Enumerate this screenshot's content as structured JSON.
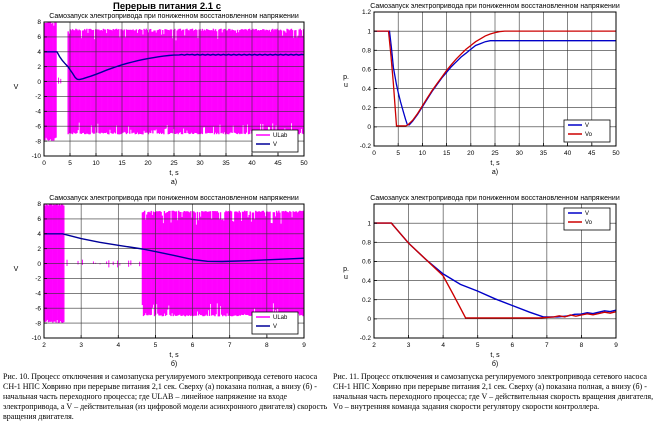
{
  "page": {
    "title": "Перерыв питания 2.1 с",
    "captions": {
      "fig10": "Рис. 10. Процесс отключения и самозапуска регулируемого электропривода сетевого насоса\nСН-1 НПС Ховрино при перерыве питания 2,1 сек. Сверху (а) показана полная, а внизу (б) -\nначальная часть переходного процесса; где ULAB – линейное напряжение на входе\nэлектропривода, а V – действительная (из цифровой модели асинхронного двигателя) скорость\nвращения двигателя.",
      "fig11": "Рис. 11. Процесс отключения и самозапуска регулируемого электропривода сетевого насоса\nСН-1 НПС Ховрино при перерыве питания 2,1 сек. Сверху (а) показана полная, а внизу (б) -\nначальная часть переходного процесса; где V – действительная скорость вращения двигателя,\nVо – внутренняя команда задания скорости регулятору скорости контроллера."
    }
  },
  "colors": {
    "magenta": "#FF00FF",
    "blue_left": "#000099",
    "blue_right": "#0000C8",
    "red": "#CC0000",
    "grid": "#333333",
    "frame": "#000000"
  },
  "chart_data": [
    {
      "id": "fig10a",
      "type": "line",
      "title": "Самозапуск электропривода при пониженном восстановленном напряжении",
      "xlabel": "t, s",
      "ylabel": "V",
      "sublabel": "а)",
      "xlim": [
        0,
        50
      ],
      "ylim": [
        -10,
        8
      ],
      "xticks": [
        0,
        5,
        10,
        15,
        20,
        25,
        30,
        35,
        40,
        45,
        50
      ],
      "yticks": [
        8,
        6,
        4,
        2,
        0,
        -2,
        -4,
        -6,
        -8,
        -10
      ],
      "grid": true,
      "legend": {
        "pos": "br",
        "entries": [
          {
            "label": "ULab",
            "color": "#FF00FF"
          },
          {
            "label": "V",
            "color": "#000099"
          }
        ]
      },
      "bands": [
        {
          "x0": 0.2,
          "x1": 2.5,
          "amp": 8,
          "jitter": 0.5
        },
        {
          "x0": 2.8,
          "x1": 4.4,
          "amp": 0.6,
          "sparse": true
        },
        {
          "x0": 4.65,
          "x1": 50,
          "amp": 7.1,
          "jitter": 1.6
        }
      ],
      "series": [
        {
          "name": "V",
          "color": "#000099",
          "width": 1.4,
          "fuzz": [
            26,
            50,
            0.05,
            0.5
          ],
          "points": [
            [
              0,
              4
            ],
            [
              2.5,
              4
            ],
            [
              3,
              3.35
            ],
            [
              3.5,
              2.85
            ],
            [
              4,
              2.45
            ],
            [
              4.65,
              1.95
            ],
            [
              5,
              1.6
            ],
            [
              5.5,
              1.1
            ],
            [
              6,
              0.55
            ],
            [
              6.4,
              0.3
            ],
            [
              6.8,
              0.27
            ],
            [
              7.5,
              0.38
            ],
            [
              8,
              0.5
            ],
            [
              9,
              0.72
            ],
            [
              10,
              0.98
            ],
            [
              11,
              1.25
            ],
            [
              12,
              1.52
            ],
            [
              13,
              1.78
            ],
            [
              14,
              2.02
            ],
            [
              15,
              2.25
            ],
            [
              16,
              2.45
            ],
            [
              17,
              2.63
            ],
            [
              18,
              2.8
            ],
            [
              19,
              2.95
            ],
            [
              20,
              3.08
            ],
            [
              21,
              3.2
            ],
            [
              22,
              3.32
            ],
            [
              23,
              3.42
            ],
            [
              24,
              3.5
            ],
            [
              25,
              3.55
            ],
            [
              26,
              3.58
            ],
            [
              28,
              3.6
            ],
            [
              50,
              3.6
            ]
          ]
        }
      ]
    },
    {
      "id": "fig11a",
      "type": "line",
      "title": "Самозапуск электропривода при пониженном восстановленном напряжении",
      "xlabel": "t, s",
      "ylabel": "p.\nu",
      "sublabel": "а)",
      "xlim": [
        0,
        50
      ],
      "ylim": [
        -0.2,
        1.2
      ],
      "xticks": [
        0,
        5,
        10,
        15,
        20,
        25,
        30,
        35,
        40,
        45,
        50
      ],
      "yticks": [
        1.2,
        1,
        0.8,
        0.6,
        0.4,
        0.2,
        0,
        -0.2
      ],
      "grid": true,
      "legend": {
        "pos": "br",
        "entries": [
          {
            "label": "V",
            "color": "#0000C8"
          },
          {
            "label": "Vo",
            "color": "#CC0000"
          }
        ]
      },
      "bands": [],
      "series": [
        {
          "name": "V",
          "color": "#0000C8",
          "width": 1.3,
          "fuzz": [
            25,
            50,
            0.013,
            0.5
          ],
          "points": [
            [
              0,
              1
            ],
            [
              3.2,
              1
            ],
            [
              3.6,
              0.83
            ],
            [
              4,
              0.62
            ],
            [
              4.65,
              0.44
            ],
            [
              5,
              0.36
            ],
            [
              5.5,
              0.26
            ],
            [
              6,
              0.17
            ],
            [
              6.5,
              0.08
            ],
            [
              6.9,
              0.02
            ],
            [
              7.3,
              0.02
            ],
            [
              8,
              0.06
            ],
            [
              9,
              0.13
            ],
            [
              10,
              0.21
            ],
            [
              11,
              0.29
            ],
            [
              12,
              0.37
            ],
            [
              13,
              0.44
            ],
            [
              14,
              0.51
            ],
            [
              15,
              0.57
            ],
            [
              16,
              0.63
            ],
            [
              17,
              0.68
            ],
            [
              18,
              0.73
            ],
            [
              19,
              0.77
            ],
            [
              20,
              0.81
            ],
            [
              21,
              0.85
            ],
            [
              22,
              0.87
            ],
            [
              23,
              0.89
            ],
            [
              24,
              0.9
            ],
            [
              50,
              0.9
            ]
          ]
        },
        {
          "name": "Vo",
          "color": "#CC0000",
          "width": 1.3,
          "fuzz": [
            28,
            50,
            0.007,
            0.5
          ],
          "points": [
            [
              0,
              1
            ],
            [
              3,
              1
            ],
            [
              3.5,
              0.75
            ],
            [
              4,
              0.45
            ],
            [
              4.3,
              0.25
            ],
            [
              4.65,
              0.01
            ],
            [
              6.6,
              0.01
            ],
            [
              7,
              0.02
            ],
            [
              8,
              0.07
            ],
            [
              9,
              0.14
            ],
            [
              10,
              0.22
            ],
            [
              11,
              0.3
            ],
            [
              12,
              0.38
            ],
            [
              13,
              0.45
            ],
            [
              14,
              0.52
            ],
            [
              15,
              0.59
            ],
            [
              16,
              0.65
            ],
            [
              17,
              0.71
            ],
            [
              18,
              0.76
            ],
            [
              19,
              0.81
            ],
            [
              20,
              0.85
            ],
            [
              21,
              0.89
            ],
            [
              22,
              0.92
            ],
            [
              23,
              0.95
            ],
            [
              24,
              0.97
            ],
            [
              25,
              0.985
            ],
            [
              26,
              0.995
            ],
            [
              27,
              1
            ],
            [
              50,
              1
            ]
          ]
        }
      ]
    },
    {
      "id": "fig10b",
      "type": "line",
      "title": "Самозапуск электропривода при пониженном восстановленном напряжении",
      "xlabel": "t, s",
      "ylabel": "V",
      "sublabel": "б)",
      "xlim": [
        2,
        9
      ],
      "ylim": [
        -10,
        8
      ],
      "xticks": [
        2,
        3,
        4,
        5,
        6,
        7,
        8,
        9
      ],
      "yticks": [
        8,
        6,
        4,
        2,
        0,
        -2,
        -4,
        -6,
        -8,
        -10
      ],
      "grid": true,
      "legend": {
        "pos": "br",
        "entries": [
          {
            "label": "ULab",
            "color": "#FF00FF"
          },
          {
            "label": "V",
            "color": "#000099"
          }
        ]
      },
      "bands": [
        {
          "x0": 2,
          "x1": 2.55,
          "amp": 8,
          "jitter": 0.5
        },
        {
          "x0": 2.62,
          "x1": 4.58,
          "amp": 0.55,
          "sparse": true
        },
        {
          "x0": 4.65,
          "x1": 9,
          "amp": 7.1,
          "jitter": 1.9
        }
      ],
      "series": [
        {
          "name": "V",
          "color": "#000099",
          "width": 1.4,
          "points": [
            [
              2,
              4
            ],
            [
              2.5,
              4
            ],
            [
              3,
              3.35
            ],
            [
              3.5,
              2.85
            ],
            [
              4,
              2.45
            ],
            [
              4.65,
              1.95
            ],
            [
              5,
              1.6
            ],
            [
              5.5,
              1.1
            ],
            [
              6,
              0.55
            ],
            [
              6.4,
              0.3
            ],
            [
              6.8,
              0.27
            ],
            [
              7.5,
              0.38
            ],
            [
              8,
              0.5
            ],
            [
              8.5,
              0.6
            ],
            [
              9,
              0.72
            ]
          ]
        }
      ]
    },
    {
      "id": "fig11b",
      "type": "line",
      "title": "Самозапуск электропривода при пониженном восстановленном напряжении",
      "xlabel": "t, s",
      "ylabel": "p.\nu",
      "sublabel": "б)",
      "xlim": [
        2,
        9
      ],
      "ylim": [
        -0.2,
        1.2
      ],
      "xticks": [
        2,
        3,
        4,
        5,
        6,
        7,
        8,
        9
      ],
      "yticks": [
        1,
        0.8,
        0.6,
        0.4,
        0.2,
        0,
        -0.2
      ],
      "grid": true,
      "legend": {
        "pos": "tr",
        "entries": [
          {
            "label": "V",
            "color": "#0000C8"
          },
          {
            "label": "Vo",
            "color": "#CC0000"
          }
        ]
      },
      "bands": [],
      "series": [
        {
          "name": "V",
          "color": "#0000C8",
          "width": 1.4,
          "fuzz": [
            7.2,
            9,
            0.008,
            0.15
          ],
          "points": [
            [
              2,
              1
            ],
            [
              2.5,
              1
            ],
            [
              3,
              0.79
            ],
            [
              3.5,
              0.62
            ],
            [
              4,
              0.47
            ],
            [
              4.5,
              0.36
            ],
            [
              5,
              0.29
            ],
            [
              5.5,
              0.21
            ],
            [
              6,
              0.14
            ],
            [
              6.5,
              0.07
            ],
            [
              6.9,
              0.02
            ],
            [
              7.3,
              0.02
            ],
            [
              7.6,
              0.03
            ],
            [
              8,
              0.05
            ],
            [
              8.5,
              0.07
            ],
            [
              9,
              0.09
            ]
          ]
        },
        {
          "name": "Vo",
          "color": "#CC0000",
          "width": 1.4,
          "fuzz": [
            7.2,
            9,
            0.008,
            0.15
          ],
          "points": [
            [
              2,
              1
            ],
            [
              2.5,
              1
            ],
            [
              3,
              0.79
            ],
            [
              3.5,
              0.62
            ],
            [
              4,
              0.45
            ],
            [
              4.3,
              0.25
            ],
            [
              4.65,
              0.01
            ],
            [
              6.8,
              0.01
            ],
            [
              7.2,
              0.02
            ],
            [
              8,
              0.04
            ],
            [
              8.5,
              0.055
            ],
            [
              9,
              0.075
            ]
          ]
        }
      ]
    }
  ]
}
